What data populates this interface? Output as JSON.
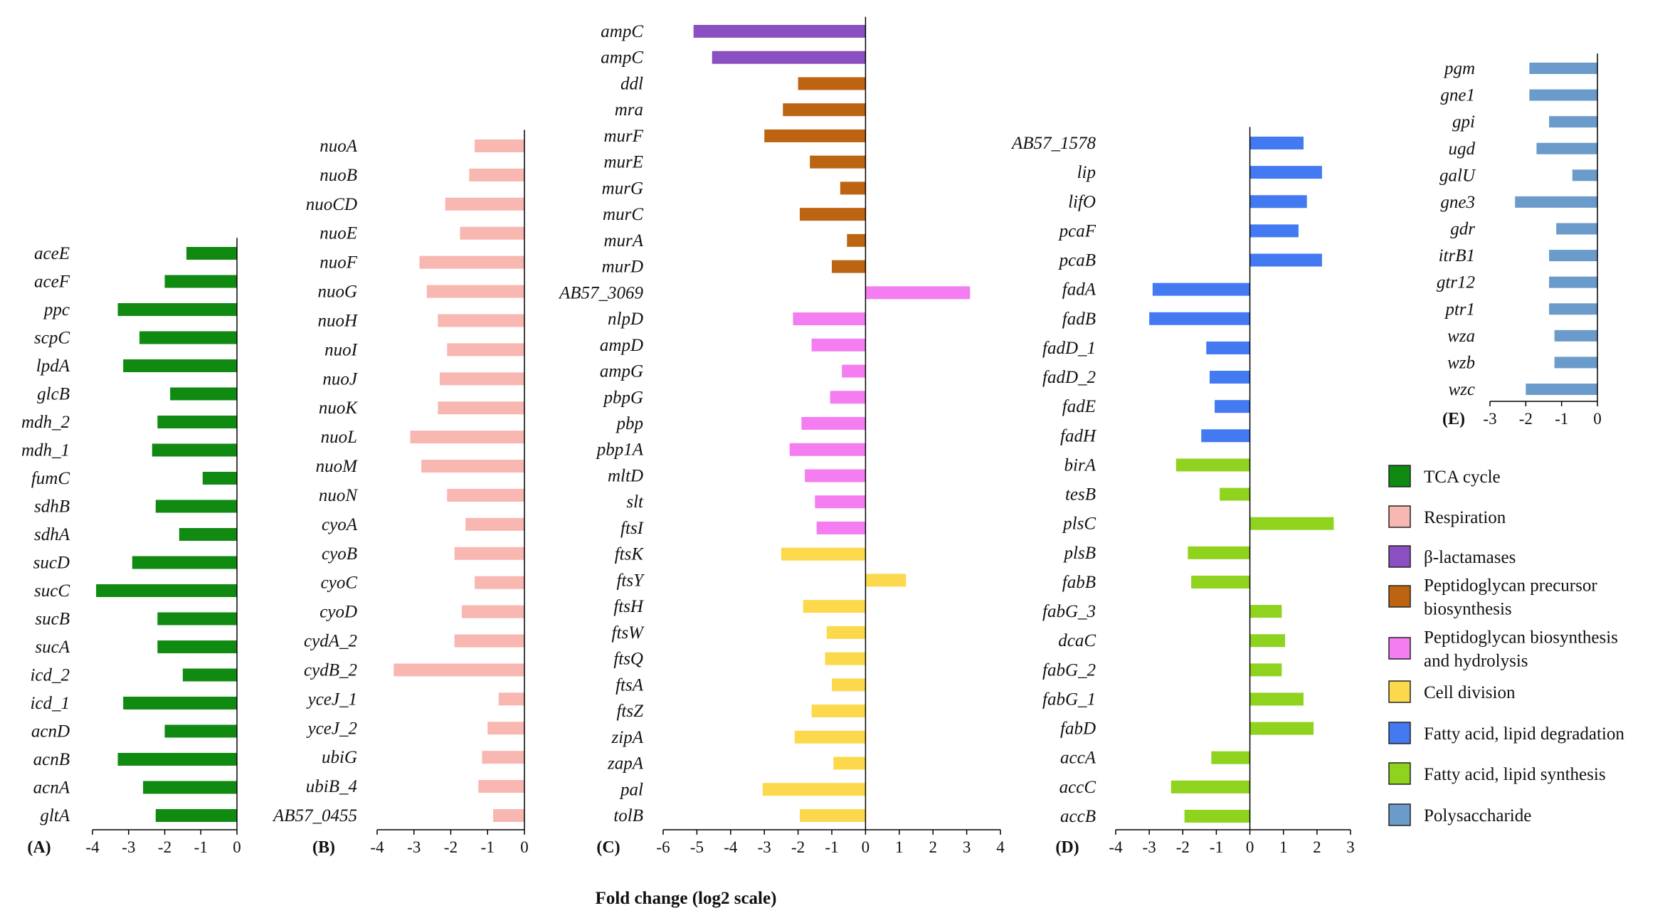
{
  "chart_data": [
    {
      "id": "A",
      "type": "bar",
      "orientation": "horizontal",
      "panel_label": "(A)",
      "category": "TCA cycle",
      "xlim": [
        -4,
        0
      ],
      "ticks": [
        -4,
        -3,
        -2,
        -1,
        0
      ],
      "genes": [
        "aceE",
        "aceF",
        "ppc",
        "scpC",
        "lpdA",
        "glcB",
        "mdh_2",
        "mdh_1",
        "fumC",
        "sdhB",
        "sdhA",
        "sucD",
        "sucC",
        "sucB",
        "sucA",
        "icd_2",
        "icd_1",
        "acnD",
        "acnB",
        "acnA",
        "gltA"
      ],
      "values": [
        -1.4,
        -2.0,
        -3.3,
        -2.7,
        -3.15,
        -1.85,
        -2.2,
        -2.35,
        -0.95,
        -2.25,
        -1.6,
        -2.9,
        -3.9,
        -2.2,
        -2.2,
        -1.5,
        -3.15,
        -2.0,
        -3.3,
        -2.6,
        -2.25
      ]
    },
    {
      "id": "B",
      "type": "bar",
      "orientation": "horizontal",
      "panel_label": "(B)",
      "category": "Respiration",
      "xlim": [
        -4,
        0
      ],
      "ticks": [
        -4,
        -3,
        -2,
        -1,
        0
      ],
      "genes": [
        "nuoA",
        "nuoB",
        "nuoCD",
        "nuoE",
        "nuoF",
        "nuoG",
        "nuoH",
        "nuoI",
        "nuoJ",
        "nuoK",
        "nuoL",
        "nuoM",
        "nuoN",
        "cyoA",
        "cyoB",
        "cyoC",
        "cyoD",
        "cydA_2",
        "cydB_2",
        "yceJ_1",
        "yceJ_2",
        "ubiG",
        "ubiB_4",
        "AB57_0455"
      ],
      "values": [
        -1.35,
        -1.5,
        -2.15,
        -1.75,
        -2.85,
        -2.65,
        -2.35,
        -2.1,
        -2.3,
        -2.35,
        -3.1,
        -2.8,
        -2.1,
        -1.6,
        -1.9,
        -1.35,
        -1.7,
        -1.9,
        -3.55,
        -0.7,
        -1.0,
        -1.15,
        -1.25,
        -0.85
      ]
    },
    {
      "id": "C",
      "type": "bar",
      "orientation": "horizontal",
      "panel_label": "(C)",
      "xlim": [
        -6,
        4
      ],
      "ticks": [
        -6,
        -5,
        -4,
        -3,
        -2,
        -1,
        0,
        1,
        2,
        3,
        4
      ],
      "genes": [
        "ampC",
        "ampC",
        "ddl",
        "mra",
        "murF",
        "murE",
        "murG",
        "murC",
        "murA",
        "murD",
        "AB57_3069",
        "nlpD",
        "ampD",
        "ampG",
        "pbpG",
        "pbp",
        "pbp1A",
        "mltD",
        "slt",
        "ftsI",
        "ftsK",
        "ftsY",
        "ftsH",
        "ftsW",
        "ftsQ",
        "ftsA",
        "ftsZ",
        "zipA",
        "zapA",
        "pal",
        "tolB"
      ],
      "values": [
        -5.1,
        -4.55,
        -2.0,
        -2.45,
        -3.0,
        -1.65,
        -0.75,
        -1.95,
        -0.55,
        -1.0,
        3.1,
        -2.15,
        -1.6,
        -0.7,
        -1.05,
        -1.9,
        -2.25,
        -1.8,
        -1.5,
        -1.45,
        -2.5,
        1.2,
        -1.85,
        -1.15,
        -1.2,
        -1.0,
        -1.6,
        -2.1,
        -0.95,
        -3.05,
        -1.95
      ],
      "groups": [
        "beta",
        "beta",
        "ppb",
        "ppb",
        "ppb",
        "ppb",
        "ppb",
        "ppb",
        "ppb",
        "ppb",
        "pbh",
        "pbh",
        "pbh",
        "pbh",
        "pbh",
        "pbh",
        "pbh",
        "pbh",
        "pbh",
        "pbh",
        "cd",
        "cd",
        "cd",
        "cd",
        "cd",
        "cd",
        "cd",
        "cd",
        "cd",
        "cd",
        "cd"
      ]
    },
    {
      "id": "D",
      "type": "bar",
      "orientation": "horizontal",
      "panel_label": "(D)",
      "xlim": [
        -4,
        3
      ],
      "ticks": [
        -4,
        -3,
        -2,
        -1,
        0,
        1,
        2,
        3
      ],
      "genes": [
        "AB57_1578",
        "lip",
        "lifO",
        "pcaF",
        "pcaB",
        "fadA",
        "fadB",
        "fadD_1",
        "fadD_2",
        "fadE",
        "fadH",
        "birA",
        "tesB",
        "plsC",
        "plsB",
        "fabB",
        "fabG_3",
        "dcaC",
        "fabG_2",
        "fabG_1",
        "fabD",
        "accA",
        "accC",
        "accB"
      ],
      "values": [
        1.6,
        2.15,
        1.7,
        1.45,
        2.15,
        -2.9,
        -3.0,
        -1.3,
        -1.2,
        -1.05,
        -1.45,
        -2.2,
        -0.9,
        2.5,
        -1.85,
        -1.75,
        0.95,
        1.05,
        0.95,
        1.6,
        1.9,
        -1.15,
        -2.35,
        -1.95
      ],
      "groups": [
        "deg",
        "deg",
        "deg",
        "deg",
        "deg",
        "deg",
        "deg",
        "deg",
        "deg",
        "deg",
        "deg",
        "syn",
        "syn",
        "syn",
        "syn",
        "syn",
        "syn",
        "syn",
        "syn",
        "syn",
        "syn",
        "syn",
        "syn",
        "syn"
      ]
    },
    {
      "id": "E",
      "type": "bar",
      "orientation": "horizontal",
      "panel_label": "(E)",
      "category": "Polysaccharide",
      "xlim": [
        -3,
        0
      ],
      "ticks": [
        -3,
        -2,
        -1,
        0
      ],
      "genes": [
        "pgm",
        "gne1",
        "gpi",
        "ugd",
        "galU",
        "gne3",
        "gdr",
        "itrB1",
        "gtr12",
        "ptr1",
        "wza",
        "wzb",
        "wzc"
      ],
      "values": [
        -1.9,
        -1.9,
        -1.35,
        -1.7,
        -0.7,
        -2.3,
        -1.15,
        -1.35,
        -1.35,
        -1.35,
        -1.2,
        -1.2,
        -2.0
      ]
    }
  ],
  "x_axis_title": "Fold change (log2 scale)",
  "legend": [
    {
      "key": "tca",
      "lines": [
        "TCA cycle"
      ],
      "color": "#118a11"
    },
    {
      "key": "resp",
      "lines": [
        "Respiration"
      ],
      "color": "#f8b7b0"
    },
    {
      "key": "beta",
      "lines": [
        "β-lactamases"
      ],
      "color": "#8a4fc0"
    },
    {
      "key": "ppb",
      "lines": [
        "Peptidoglycan precursor",
        "biosynthesis"
      ],
      "color": "#bd6412"
    },
    {
      "key": "pbh",
      "lines": [
        "Peptidoglycan biosynthesis",
        "and hydrolysis"
      ],
      "color": "#f47ef1"
    },
    {
      "key": "cd",
      "lines": [
        "Cell division"
      ],
      "color": "#fcd94c"
    },
    {
      "key": "deg",
      "lines": [
        "Fatty acid, lipid degradation"
      ],
      "color": "#4379f1"
    },
    {
      "key": "syn",
      "lines": [
        "Fatty acid, lipid synthesis"
      ],
      "color": "#8fd31e"
    },
    {
      "key": "poly",
      "lines": [
        "Polysaccharide"
      ],
      "color": "#6a9bcb"
    }
  ],
  "colors": {
    "A": "#118a11",
    "B": "#f8b7b0",
    "E": "#6a9bcb",
    "beta": "#8a4fc0",
    "ppb": "#bd6412",
    "pbh": "#f47ef1",
    "cd": "#fcd94c",
    "deg": "#4379f1",
    "syn": "#8fd31e"
  }
}
